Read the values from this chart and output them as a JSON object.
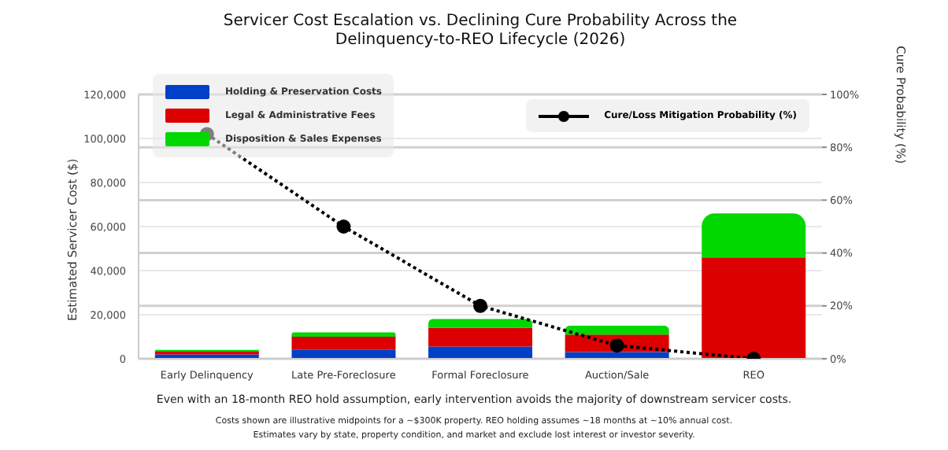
{
  "chart_data": {
    "type": "bar",
    "title": "Servicer Cost Escalation vs. Declining Cure Probability Across the Delinquency-to-REO Lifecycle (2026)",
    "xlabel": null,
    "ylabel": "Estimated Servicer Cost ($)",
    "y2label": "Cure Probability (%)",
    "categories": [
      "Early Delinquency",
      "Late Pre-Foreclosure",
      "Formal Foreclosure",
      "Auction/Sale",
      "REO"
    ],
    "stacked": true,
    "series": [
      {
        "name": "Holding & Preservation Costs",
        "color": "#0040c8",
        "values": [
          2000,
          4000,
          5500,
          3000,
          0
        ]
      },
      {
        "name": "Legal & Administrative Fees",
        "color": "#dc0000",
        "values": [
          1200,
          6000,
          8500,
          8000,
          46000
        ]
      },
      {
        "name": "Disposition & Sales Expenses",
        "color": "#00d800",
        "values": [
          800,
          2000,
          4000,
          4000,
          20000
        ]
      },
      {
        "name": "Cure/Loss Mitigation Probability (%)",
        "type": "line",
        "axis": "y2",
        "color": "#000000",
        "marker": "circle",
        "line_style": "dotted",
        "values": [
          85,
          50,
          20,
          5,
          0
        ]
      }
    ],
    "ylim": [
      0,
      120000
    ],
    "yticks": [
      {
        "value": 0,
        "label": "0"
      },
      {
        "value": 20000,
        "label": "20,000"
      },
      {
        "value": 40000,
        "label": "40,000"
      },
      {
        "value": 60000,
        "label": "60,000"
      },
      {
        "value": 80000,
        "label": "80,000"
      },
      {
        "value": 100000,
        "label": "100,000"
      },
      {
        "value": 120000,
        "label": "120,000"
      }
    ],
    "y2lim": [
      0,
      100
    ],
    "y2ticks": [
      {
        "value": 0,
        "label": "0%"
      },
      {
        "value": 20,
        "label": "20%"
      },
      {
        "value": 40,
        "label": "40%"
      },
      {
        "value": 60,
        "label": "60%"
      },
      {
        "value": 80,
        "label": "80%"
      },
      {
        "value": 100,
        "label": "100%"
      }
    ],
    "grid": "y",
    "legend": "top",
    "annotations": [
      "Even with an 18-month REO hold assumption, early intervention avoids the majority of downstream servicer costs.",
      "Costs shown are illustrative midpoints for a ~$300K property. REO holding assumes ~18 months at ~10% annual cost.",
      "Estimates vary by state, property condition, and market and exclude lost interest or investor severity."
    ]
  }
}
